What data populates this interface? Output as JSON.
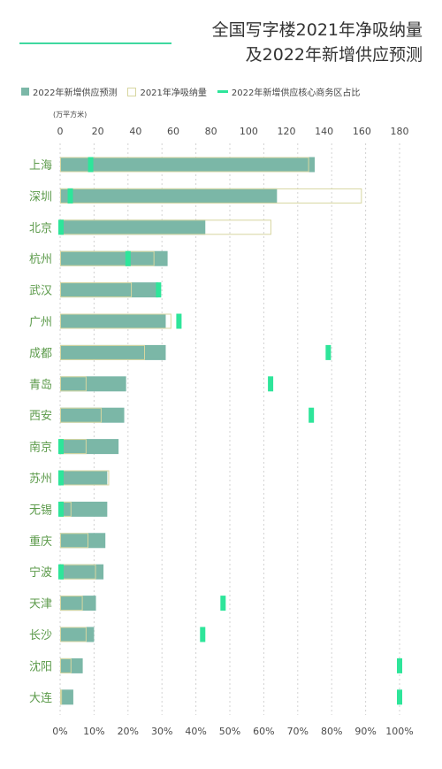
{
  "title_line1": "全国写字楼2021年净吸纳量",
  "title_line2": "及2022年新增供应预测",
  "legend": {
    "supply": "2022年新增供应预测",
    "absorption": "2021年净吸纳量",
    "core_share": "2022年新增供应核心商务区占比"
  },
  "unit": "(万平方米)",
  "colors": {
    "supply": "#7bb7a7",
    "absorption_outline": "#d7d6a0",
    "core_share": "#2ee59a",
    "category": "#5b9a4a"
  },
  "chart_data": {
    "type": "bar",
    "orientation": "horizontal",
    "categories": [
      "上海",
      "深圳",
      "北京",
      "杭州",
      "武汉",
      "广州",
      "成都",
      "青岛",
      "西安",
      "南京",
      "苏州",
      "无锡",
      "重庆",
      "宁波",
      "天津",
      "长沙",
      "沈阳",
      "大连"
    ],
    "series": [
      {
        "name": "2022年新增供应预测",
        "axis": "top",
        "values": [
          135,
          115,
          77,
          57,
          52,
          56,
          56,
          35,
          34,
          31,
          25,
          25,
          24,
          23,
          19,
          18,
          12,
          7
        ]
      },
      {
        "name": "2021年净吸纳量",
        "axis": "top",
        "values": [
          132,
          160,
          112,
          50,
          38,
          59,
          45,
          14,
          22,
          14,
          26,
          6,
          15,
          19,
          12,
          14,
          6,
          1
        ]
      },
      {
        "name": "2022年新增供应核心商务区占比",
        "axis": "bottom",
        "unit": "%",
        "values": [
          9,
          3,
          0,
          20,
          29,
          35,
          79,
          62,
          74,
          0,
          0,
          0,
          null,
          0,
          48,
          42,
          100,
          100
        ]
      }
    ],
    "top_axis": {
      "ticks": [
        0,
        20,
        40,
        60,
        80,
        100,
        120,
        140,
        160,
        180
      ],
      "range": [
        0,
        180
      ]
    },
    "bottom_axis": {
      "ticks": [
        "0%",
        "10%",
        "20%",
        "30%",
        "40%",
        "50%",
        "60%",
        "70%",
        "80%",
        "90%",
        "100%"
      ],
      "range": [
        0,
        100
      ]
    }
  }
}
